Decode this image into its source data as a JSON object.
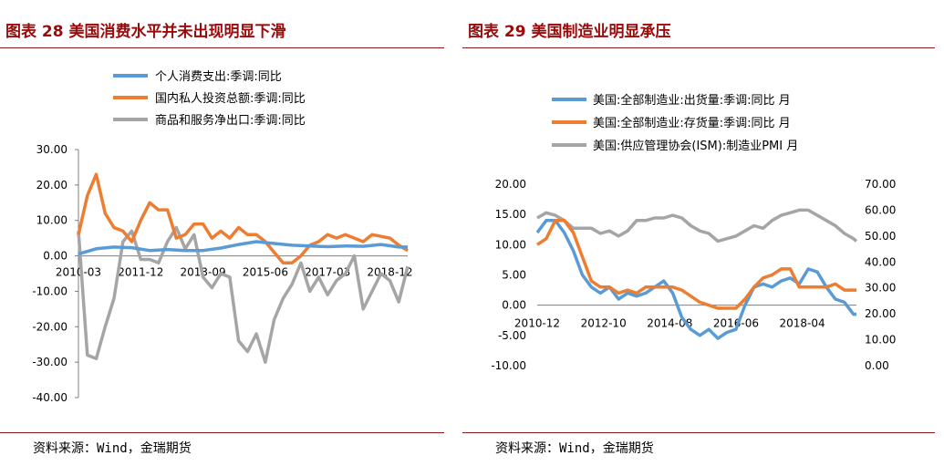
{
  "left": {
    "title": "图表 28 美国消费水平并未出现明显下滑",
    "source": "资料来源：Wind，金瑞期货",
    "chart_data": {
      "type": "line",
      "y_ticks": [
        "30.00",
        "20.00",
        "10.00",
        "0.00",
        "-10.00",
        "-20.00",
        "-30.00",
        "-40.00"
      ],
      "ylim": [
        -40,
        30
      ],
      "x_ticks": [
        {
          "t": 0,
          "label": "2010-03"
        },
        {
          "t": 21,
          "label": "2011-12"
        },
        {
          "t": 42,
          "label": "2013-09"
        },
        {
          "t": 63,
          "label": "2015-06"
        },
        {
          "t": 84,
          "label": "2017-03"
        },
        {
          "t": 105,
          "label": "2018-12"
        }
      ],
      "x_range": [
        0,
        111
      ],
      "legend": "top",
      "series": [
        {
          "name": "个人消费支出:季调:同比",
          "color": "#5b9bd5",
          "x": [
            0,
            6,
            12,
            18,
            24,
            30,
            36,
            42,
            48,
            54,
            60,
            66,
            72,
            78,
            84,
            90,
            96,
            102,
            108,
            111
          ],
          "y": [
            0.5,
            2,
            2.5,
            2.3,
            1.5,
            1.8,
            1.5,
            1.5,
            2.2,
            3.2,
            4,
            3.5,
            3,
            2.8,
            2.6,
            2.8,
            2.7,
            3.2,
            2.5,
            2.5
          ]
        },
        {
          "name": "国内私人投资总额:季调:同比",
          "color": "#ed7d31",
          "x": [
            0,
            3,
            6,
            9,
            12,
            15,
            18,
            21,
            24,
            27,
            30,
            33,
            36,
            39,
            42,
            45,
            48,
            51,
            54,
            57,
            60,
            63,
            66,
            69,
            72,
            75,
            78,
            81,
            84,
            87,
            90,
            93,
            96,
            99,
            102,
            105,
            108,
            111
          ],
          "y": [
            6,
            17,
            23,
            12,
            8,
            7,
            4,
            10,
            15,
            13,
            13,
            5,
            6,
            9,
            9,
            5,
            7,
            5,
            8,
            6,
            6,
            4,
            1,
            -2,
            -2,
            0,
            3,
            4,
            6,
            5,
            6,
            5,
            4,
            6,
            5.5,
            5,
            3,
            1.5
          ]
        },
        {
          "name": "商品和服务净出口:季调:同比",
          "color": "#a5a5a5",
          "x": [
            0,
            3,
            6,
            9,
            12,
            15,
            18,
            21,
            24,
            27,
            30,
            33,
            36,
            39,
            42,
            45,
            48,
            51,
            54,
            57,
            60,
            63,
            66,
            69,
            72,
            75,
            78,
            81,
            84,
            87,
            90,
            93,
            96,
            99,
            102,
            105,
            108,
            111
          ],
          "y": [
            7,
            -28,
            -29,
            -20,
            -12,
            4,
            7,
            -1,
            -1,
            -2,
            4,
            8,
            2,
            6,
            -6,
            -9,
            -5,
            -6,
            -24,
            -27,
            -22,
            -30,
            -18,
            -12,
            -8,
            -2,
            -10,
            -6,
            -11,
            -7,
            -5,
            0,
            -15,
            -10,
            -5,
            -7,
            -13,
            -3
          ]
        }
      ]
    }
  },
  "right": {
    "title": "图表 29   美国制造业明显承压",
    "source": "资料来源：Wind，金瑞期货",
    "chart_data": {
      "type": "line",
      "y_left_ticks": [
        "20.00",
        "15.00",
        "10.00",
        "5.00",
        "0.00",
        "-5.00",
        "-10.00"
      ],
      "ylim_left": [
        -10,
        20
      ],
      "y_right_ticks": [
        "70.00",
        "60.00",
        "50.00",
        "40.00",
        "30.00",
        "20.00",
        "10.00",
        "0.00"
      ],
      "ylim_right": [
        0,
        70
      ],
      "x_ticks": [
        {
          "t": 0,
          "label": "2010-12"
        },
        {
          "t": 22,
          "label": "2012-10"
        },
        {
          "t": 44,
          "label": "2014-08"
        },
        {
          "t": 66,
          "label": "2016-06"
        },
        {
          "t": 88,
          "label": "2018-04"
        }
      ],
      "x_range": [
        0,
        106
      ],
      "legend": "top",
      "series": [
        {
          "name": "美国:全部制造业:出货量:季调:同比 月",
          "color": "#5b9bd5",
          "axis": "left",
          "x": [
            0,
            3,
            6,
            9,
            12,
            15,
            18,
            21,
            24,
            27,
            30,
            33,
            36,
            39,
            42,
            45,
            48,
            51,
            54,
            57,
            60,
            63,
            66,
            69,
            72,
            75,
            78,
            81,
            84,
            87,
            90,
            93,
            96,
            99,
            102,
            105,
            106
          ],
          "y": [
            12,
            14,
            14,
            12,
            9,
            5,
            3,
            2,
            3,
            1,
            2,
            1.5,
            2,
            3,
            4,
            2,
            -2,
            -4,
            -5,
            -4,
            -5.5,
            -4.5,
            -4,
            0,
            3,
            3.5,
            3,
            4,
            4.5,
            3.5,
            6,
            5.5,
            3,
            1,
            0.5,
            -1.5,
            -1.5
          ]
        },
        {
          "name": "美国:全部制造业:存货量:季调:同比 月",
          "color": "#ed7d31",
          "axis": "left",
          "x": [
            0,
            3,
            6,
            9,
            12,
            15,
            18,
            21,
            24,
            27,
            30,
            33,
            36,
            39,
            42,
            45,
            48,
            51,
            54,
            57,
            60,
            63,
            66,
            69,
            72,
            75,
            78,
            81,
            84,
            87,
            90,
            93,
            96,
            99,
            102,
            105,
            106
          ],
          "y": [
            10,
            11,
            14,
            14,
            12,
            8,
            4,
            3,
            3,
            2,
            2.5,
            2,
            3,
            3,
            3,
            3,
            2.5,
            1.5,
            0.5,
            0,
            -0.5,
            -0.5,
            -0.5,
            1,
            3,
            4.5,
            5,
            6,
            6,
            3,
            3,
            3,
            3,
            3.5,
            2.5,
            2.5,
            2.5
          ]
        },
        {
          "name": "美国:供应管理协会(ISM):制造业PMI 月",
          "color": "#a5a5a5",
          "axis": "right",
          "x": [
            0,
            3,
            6,
            9,
            12,
            15,
            18,
            21,
            24,
            27,
            30,
            33,
            36,
            39,
            42,
            45,
            48,
            51,
            54,
            57,
            60,
            63,
            66,
            69,
            72,
            75,
            78,
            81,
            84,
            87,
            90,
            93,
            96,
            99,
            102,
            105,
            106
          ],
          "y": [
            57,
            59,
            58,
            56,
            53,
            53,
            53,
            51,
            52,
            50,
            52,
            56,
            56,
            57,
            57,
            58,
            57,
            54,
            52,
            51,
            48,
            49,
            50,
            52,
            54,
            53,
            56,
            58,
            59,
            60,
            60,
            58,
            56,
            54,
            51,
            49,
            48
          ]
        }
      ]
    }
  }
}
